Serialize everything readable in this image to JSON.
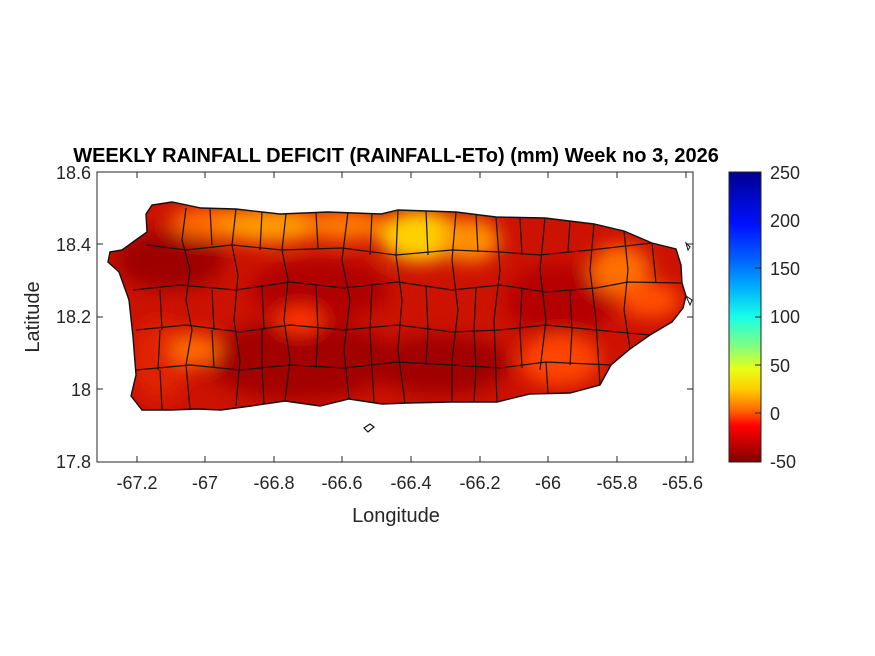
{
  "title": "WEEKLY RAINFALL DEFICIT (RAINFALL-ETo) (mm) Week no 3, 2026",
  "xlabel": "Longitude",
  "ylabel": "Latitude",
  "chart_data": {
    "type": "heatmap",
    "title": "WEEKLY RAINFALL DEFICIT (RAINFALL-ETo) (mm) Week no 3, 2026",
    "xlabel": "Longitude",
    "ylabel": "Latitude",
    "xlim": [
      -67.3,
      -65.58
    ],
    "ylim": [
      17.8,
      18.6
    ],
    "x_ticks": [
      -67.2,
      -67,
      -66.8,
      -66.6,
      -66.4,
      -66.2,
      -66,
      -65.8,
      -65.6
    ],
    "x_tick_labels": [
      "-67.2",
      "-67",
      "-66.8",
      "-66.6",
      "-66.4",
      "-66.2",
      "-66",
      "-65.8",
      "-65.6"
    ],
    "y_ticks": [
      17.8,
      18,
      18.2,
      18.4,
      18.6
    ],
    "y_tick_labels": [
      "17.8",
      "18",
      "18.2",
      "18.4",
      "18.6"
    ],
    "colorbar": {
      "colormap": "jet",
      "range": [
        -50,
        250
      ],
      "ticks": [
        -50,
        0,
        50,
        100,
        150,
        200,
        250
      ],
      "tick_labels": [
        "-50",
        "0",
        "50",
        "100",
        "150",
        "200",
        "250"
      ]
    },
    "region": "Puerto Rico (municipality boundaries)",
    "features": [
      {
        "name": "north-central coast max",
        "lon": -66.38,
        "lat": 18.4,
        "value": 50
      },
      {
        "name": "northwest coast",
        "lon": -66.88,
        "lat": 18.47,
        "value": 35
      },
      {
        "name": "northeast interior",
        "lon": -65.83,
        "lat": 18.3,
        "value": 18
      },
      {
        "name": "southwest interior",
        "lon": -67.05,
        "lat": 18.1,
        "value": 20
      },
      {
        "name": "southeast coast",
        "lon": -66.0,
        "lat": 18.03,
        "value": 10
      }
    ]
  }
}
